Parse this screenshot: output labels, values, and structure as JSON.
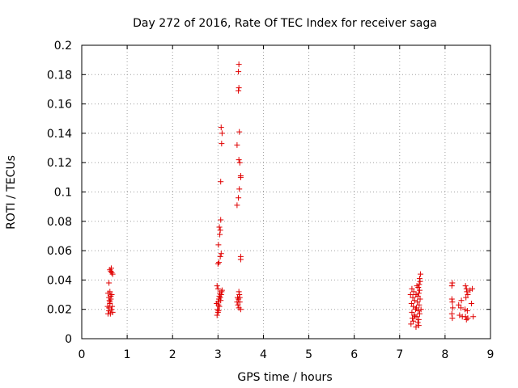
{
  "chart_data": {
    "type": "scatter",
    "title": "Day 272 of 2016, Rate Of TEC Index for receiver saga",
    "xlabel": "GPS time / hours",
    "ylabel": "ROTI / TECUs",
    "xlim": [
      0,
      9
    ],
    "ylim": [
      0,
      0.2
    ],
    "xticks": [
      "0",
      "1",
      "2",
      "3",
      "4",
      "5",
      "6",
      "7",
      "8",
      "9"
    ],
    "yticks": [
      "0",
      "0.02",
      "0.04",
      "0.06",
      "0.08",
      "0.1",
      "0.12",
      "0.14",
      "0.16",
      "0.18",
      "0.2"
    ],
    "grid": true,
    "marker": "+",
    "color": "#e00000",
    "series": [
      {
        "name": "ROTI",
        "points": [
          [
            0.58,
            0.031
          ],
          [
            0.6,
            0.028
          ],
          [
            0.62,
            0.025
          ],
          [
            0.57,
            0.022
          ],
          [
            0.6,
            0.019
          ],
          [
            0.63,
            0.017
          ],
          [
            0.58,
            0.017
          ],
          [
            0.6,
            0.021
          ],
          [
            0.62,
            0.024
          ],
          [
            0.64,
            0.027
          ],
          [
            0.66,
            0.03
          ],
          [
            0.6,
            0.038
          ],
          [
            0.65,
            0.02
          ],
          [
            0.67,
            0.022
          ],
          [
            0.62,
            0.032
          ],
          [
            0.68,
            0.018
          ],
          [
            0.64,
            0.029
          ],
          [
            0.61,
            0.026
          ],
          [
            0.62,
            0.047
          ],
          [
            0.64,
            0.046
          ],
          [
            0.66,
            0.045
          ],
          [
            0.68,
            0.044
          ],
          [
            0.65,
            0.048
          ],
          [
            2.98,
            0.016
          ],
          [
            3.0,
            0.018
          ],
          [
            2.99,
            0.02
          ],
          [
            3.01,
            0.023
          ],
          [
            3.0,
            0.025
          ],
          [
            3.02,
            0.027
          ],
          [
            3.03,
            0.029
          ],
          [
            3.04,
            0.031
          ],
          [
            3.05,
            0.028
          ],
          [
            3.06,
            0.026
          ],
          [
            3.07,
            0.03
          ],
          [
            3.08,
            0.032
          ],
          [
            2.97,
            0.024
          ],
          [
            3.0,
            0.034
          ],
          [
            2.98,
            0.036
          ],
          [
            3.09,
            0.033
          ],
          [
            3.03,
            0.022
          ],
          [
            3.01,
            0.019
          ],
          [
            3.0,
            0.051
          ],
          [
            3.02,
            0.052
          ],
          [
            3.05,
            0.056
          ],
          [
            3.07,
            0.058
          ],
          [
            3.01,
            0.064
          ],
          [
            3.04,
            0.071
          ],
          [
            3.05,
            0.074
          ],
          [
            3.03,
            0.076
          ],
          [
            3.06,
            0.081
          ],
          [
            3.06,
            0.107
          ],
          [
            3.08,
            0.133
          ],
          [
            3.09,
            0.14
          ],
          [
            3.07,
            0.144
          ],
          [
            3.42,
            0.091
          ],
          [
            3.45,
            0.096
          ],
          [
            3.47,
            0.102
          ],
          [
            3.5,
            0.11
          ],
          [
            3.5,
            0.111
          ],
          [
            3.48,
            0.12
          ],
          [
            3.46,
            0.122
          ],
          [
            3.42,
            0.132
          ],
          [
            3.47,
            0.141
          ],
          [
            3.45,
            0.169
          ],
          [
            3.46,
            0.171
          ],
          [
            3.45,
            0.182
          ],
          [
            3.46,
            0.187
          ],
          [
            3.5,
            0.056
          ],
          [
            3.5,
            0.054
          ],
          [
            3.46,
            0.032
          ],
          [
            3.47,
            0.03
          ],
          [
            3.48,
            0.028
          ],
          [
            3.45,
            0.027
          ],
          [
            3.42,
            0.025
          ],
          [
            3.44,
            0.023
          ],
          [
            3.46,
            0.021
          ],
          [
            3.5,
            0.02
          ],
          [
            3.48,
            0.025
          ],
          [
            3.43,
            0.028
          ],
          [
            7.25,
            0.01
          ],
          [
            7.3,
            0.012
          ],
          [
            7.28,
            0.014
          ],
          [
            7.32,
            0.016
          ],
          [
            7.27,
            0.018
          ],
          [
            7.35,
            0.02
          ],
          [
            7.3,
            0.022
          ],
          [
            7.26,
            0.024
          ],
          [
            7.33,
            0.026
          ],
          [
            7.29,
            0.028
          ],
          [
            7.36,
            0.03
          ],
          [
            7.31,
            0.032
          ],
          [
            7.27,
            0.034
          ],
          [
            7.38,
            0.036
          ],
          [
            7.4,
            0.011
          ],
          [
            7.42,
            0.013
          ],
          [
            7.38,
            0.015
          ],
          [
            7.44,
            0.017
          ],
          [
            7.41,
            0.019
          ],
          [
            7.37,
            0.021
          ],
          [
            7.43,
            0.023
          ],
          [
            7.39,
            0.025
          ],
          [
            7.45,
            0.027
          ],
          [
            7.4,
            0.029
          ],
          [
            7.42,
            0.031
          ],
          [
            7.44,
            0.033
          ],
          [
            7.41,
            0.035
          ],
          [
            7.43,
            0.037
          ],
          [
            7.45,
            0.039
          ],
          [
            7.44,
            0.041
          ],
          [
            7.46,
            0.044
          ],
          [
            7.42,
            0.009
          ],
          [
            7.34,
            0.015
          ],
          [
            7.24,
            0.03
          ],
          [
            7.47,
            0.02
          ],
          [
            7.36,
            0.008
          ],
          [
            8.15,
            0.036
          ],
          [
            8.16,
            0.038
          ],
          [
            8.15,
            0.027
          ],
          [
            8.16,
            0.025
          ],
          [
            8.17,
            0.021
          ],
          [
            8.15,
            0.017
          ],
          [
            8.16,
            0.014
          ],
          [
            8.3,
            0.023
          ],
          [
            8.35,
            0.021
          ],
          [
            8.32,
            0.016
          ],
          [
            8.38,
            0.015
          ],
          [
            8.36,
            0.026
          ],
          [
            8.45,
            0.036
          ],
          [
            8.47,
            0.034
          ],
          [
            8.48,
            0.032
          ],
          [
            8.5,
            0.03
          ],
          [
            8.46,
            0.028
          ],
          [
            8.44,
            0.02
          ],
          [
            8.49,
            0.019
          ],
          [
            8.45,
            0.015
          ],
          [
            8.5,
            0.014
          ],
          [
            8.47,
            0.013
          ],
          [
            8.55,
            0.033
          ],
          [
            8.6,
            0.034
          ],
          [
            8.58,
            0.024
          ],
          [
            8.62,
            0.015
          ]
        ]
      }
    ]
  }
}
